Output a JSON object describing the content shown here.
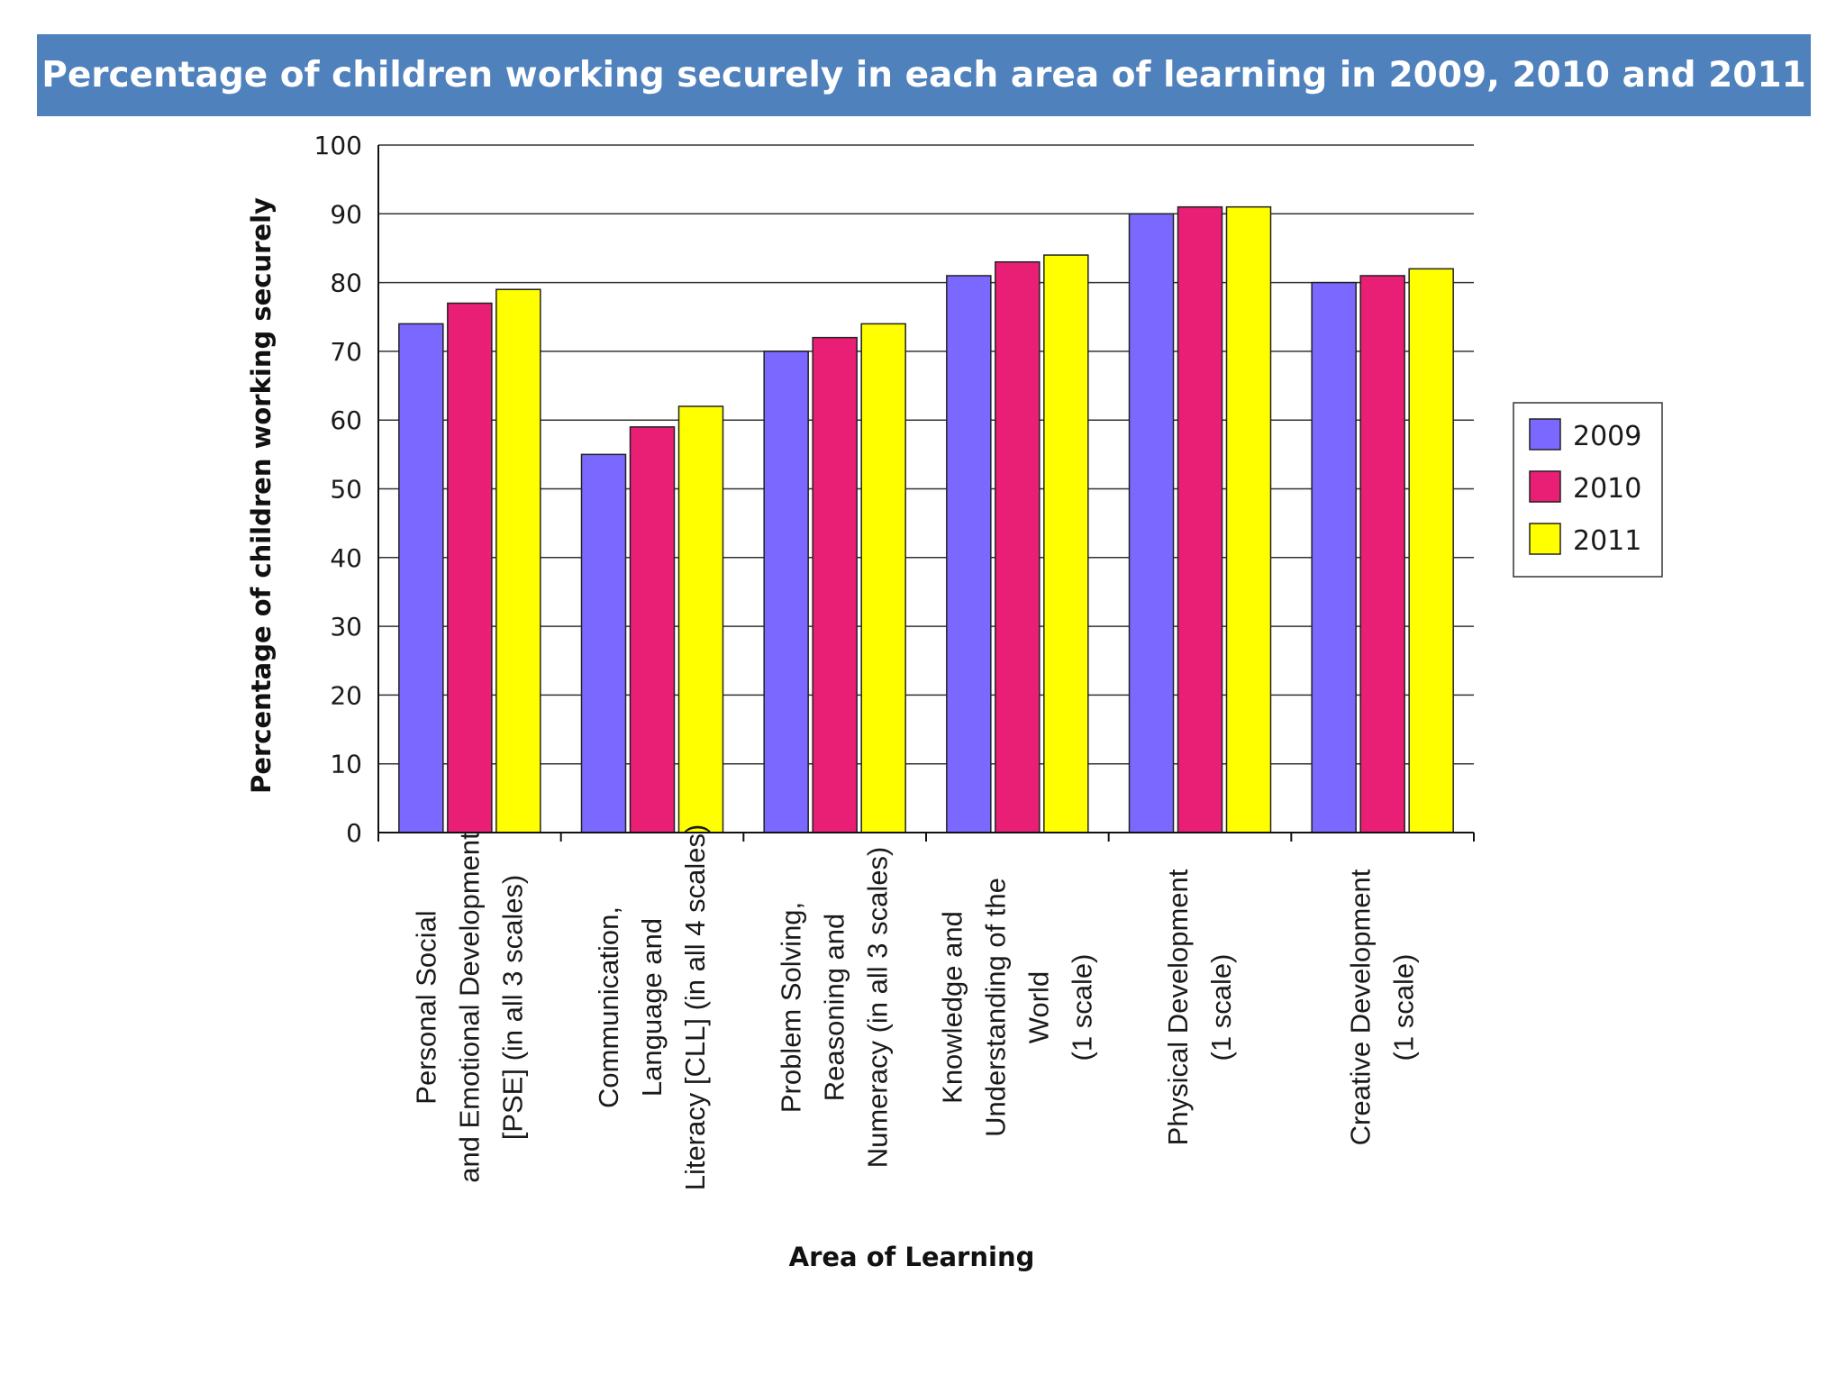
{
  "chart_data": {
    "type": "bar",
    "title": "Percentage of children working securely in each area of learning in 2009, 2010 and 2011",
    "xlabel": "Area of Learning",
    "ylabel": "Percentage of children working securely",
    "ylim": [
      0,
      100
    ],
    "yticks": [
      "0",
      "10",
      "20",
      "30",
      "40",
      "50",
      "60",
      "70",
      "80",
      "90",
      "100"
    ],
    "grid": true,
    "legend_position": "right",
    "categories": [
      [
        "Personal Social",
        "and Emotional Development",
        "[PSE] (in all 3 scales)"
      ],
      [
        "Communication,",
        "Language and",
        "Literacy [CLL] (in all 4 scales)"
      ],
      [
        "Problem Solving,",
        "Reasoning and",
        "Numeracy (in all 3 scales)"
      ],
      [
        "Knowledge and",
        "Understanding of the",
        "World",
        "(1 scale)"
      ],
      [
        "Physical Development",
        "(1 scale)"
      ],
      [
        "Creative Development",
        "(1 scale)"
      ]
    ],
    "series": [
      {
        "name": "2009",
        "color": "#7b68ff",
        "values": [
          74,
          55,
          70,
          81,
          90,
          80
        ]
      },
      {
        "name": "2010",
        "color": "#e91e75",
        "values": [
          77,
          59,
          72,
          83,
          91,
          81
        ]
      },
      {
        "name": "2011",
        "color": "#ffff00",
        "values": [
          79,
          62,
          74,
          84,
          91,
          82
        ]
      }
    ]
  }
}
